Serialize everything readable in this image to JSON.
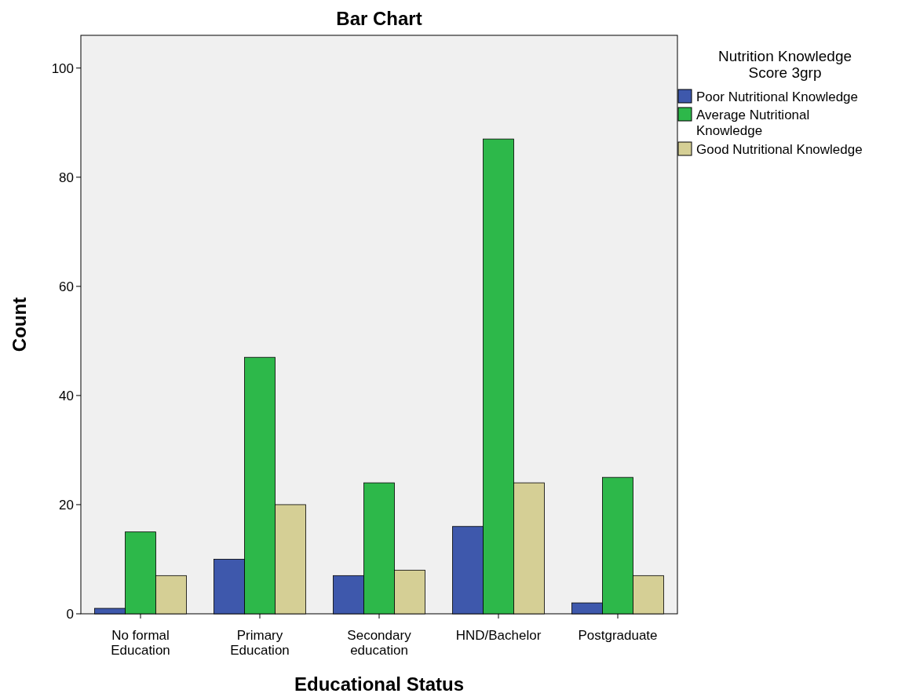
{
  "chart_data": {
    "type": "bar",
    "title": "Bar Chart",
    "xlabel": "Educational Status",
    "ylabel": "Count",
    "legend_title": "Nutrition Knowledge Score 3grp",
    "categories": [
      "No formal Education",
      "Primary Education",
      "Secondary education",
      "HND/Bachelor",
      "Postgraduate"
    ],
    "series": [
      {
        "name": "Poor Nutritional Knowledge",
        "color": "#3e58ac",
        "values": [
          1,
          10,
          7,
          16,
          2
        ]
      },
      {
        "name": "Average Nutritional Knowledge",
        "color": "#2db84a",
        "values": [
          15,
          47,
          24,
          87,
          25
        ]
      },
      {
        "name": "Good Nutritional Knowledge",
        "color": "#d5cf95",
        "values": [
          7,
          20,
          8,
          24,
          7
        ]
      }
    ],
    "ylim": [
      0,
      106
    ],
    "yticks": [
      0,
      20,
      40,
      60,
      80,
      100
    ],
    "grid": false,
    "legend": "right"
  }
}
